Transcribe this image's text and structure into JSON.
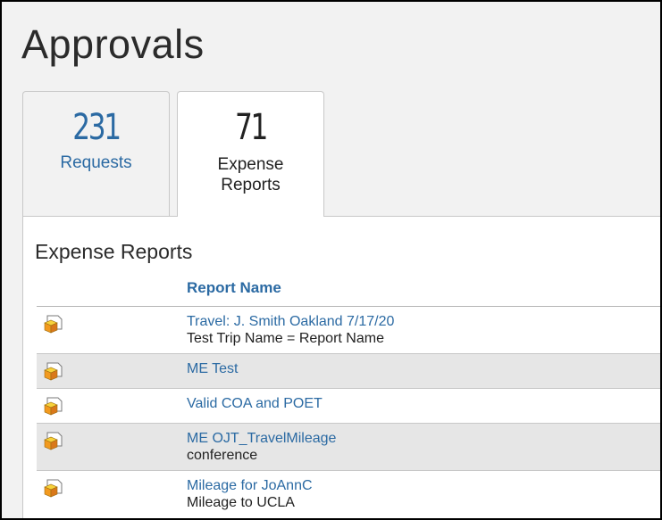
{
  "page": {
    "title": "Approvals"
  },
  "tabs": [
    {
      "count": "231",
      "label": "Requests",
      "active": false
    },
    {
      "count": "71",
      "label": "Expense Reports",
      "active": true
    }
  ],
  "section": {
    "title": "Expense Reports",
    "column_header": "Report Name"
  },
  "reports": [
    {
      "name": "Travel: J. Smith Oakland 7/17/20",
      "sub": "Test Trip Name = Report Name",
      "icon": "report-cube-icon"
    },
    {
      "name": "ME Test",
      "sub": "",
      "icon": "report-cube-icon"
    },
    {
      "name": "Valid COA and POET",
      "sub": "",
      "icon": "report-cube-icon"
    },
    {
      "name": "ME OJT_TravelMileage",
      "sub": "conference",
      "icon": "report-cube-icon"
    },
    {
      "name": "Mileage for JoAnnC",
      "sub": "Mileage to UCLA",
      "icon": "report-cube-icon"
    }
  ],
  "colors": {
    "link": "#2b6aa3",
    "alt_row": "#e6e6e6",
    "icon_orange": "#f29a1f",
    "icon_yellow": "#f7d23a"
  }
}
